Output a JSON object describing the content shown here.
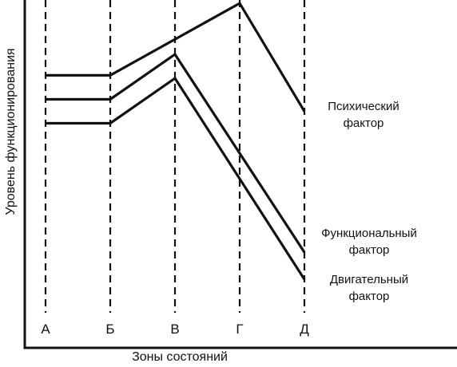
{
  "chart_data": {
    "type": "line",
    "xlabel": "Зоны состояний",
    "ylabel": "Уровень функционирования",
    "categories": [
      "А",
      "Б",
      "В",
      "Г",
      "Д"
    ],
    "grid": "vertical-dashed",
    "legend": "right, inline labels",
    "y_scale": "unlabeled",
    "series": [
      {
        "name": [
          "Психический",
          "фактор"
        ],
        "x": [
          "А",
          "Б",
          "Г",
          "Д"
        ],
        "values": [
          8.7,
          8.7,
          11.1,
          7.5
        ]
      },
      {
        "name": [
          "Функциональный",
          "фактор"
        ],
        "x": [
          "А",
          "Б",
          "В",
          "Д"
        ],
        "values": [
          7.9,
          7.9,
          9.4,
          2.8
        ]
      },
      {
        "name": [
          "Двигательный",
          "фактор"
        ],
        "x": [
          "А",
          "Б",
          "В",
          "Д"
        ],
        "values": [
          7.1,
          7.1,
          8.6,
          1.9
        ]
      }
    ],
    "colors": {
      "line": "#111111",
      "grid": "#111111",
      "axis": "#111111"
    }
  }
}
